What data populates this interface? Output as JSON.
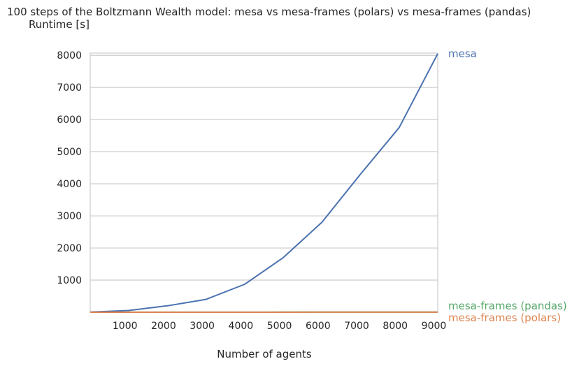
{
  "chart_data": {
    "type": "line",
    "title": "100 steps of the Boltzmann Wealth model: mesa vs mesa-frames (polars) vs mesa-frames (pandas)",
    "subtitle": "Runtime [s]",
    "xlabel": "Number of agents",
    "ylabel": "",
    "xlim": [
      100,
      9100
    ],
    "ylim": [
      0,
      8070
    ],
    "x_ticks": [
      1000,
      2000,
      3000,
      4000,
      5000,
      6000,
      7000,
      8000,
      9000
    ],
    "y_ticks": [
      1000,
      2000,
      3000,
      4000,
      5000,
      6000,
      7000,
      8000
    ],
    "grid": "horizontal",
    "legend": "direct labels at right edge",
    "series": [
      {
        "name": "mesa",
        "color": "#4c72b0",
        "x": [
          100,
          1100,
          2100,
          3100,
          4100,
          5100,
          6100,
          7100,
          8100,
          9100
        ],
        "values": [
          5,
          55,
          200,
          400,
          870,
          1700,
          2800,
          4300,
          5750,
          8050
        ]
      },
      {
        "name": "mesa-frames (pandas)",
        "color": "#55a868",
        "x": [
          100,
          1100,
          2100,
          3100,
          4100,
          5100,
          6100,
          7100,
          8100,
          9100
        ],
        "values": [
          1,
          2,
          2,
          3,
          3,
          4,
          4,
          5,
          5,
          6
        ]
      },
      {
        "name": "mesa-frames (polars)",
        "color": "#dd8452",
        "x": [
          100,
          1100,
          2100,
          3100,
          4100,
          5100,
          6100,
          7100,
          8100,
          9100
        ],
        "values": [
          0.5,
          0.6,
          0.7,
          0.8,
          0.9,
          1.0,
          1.1,
          1.2,
          1.3,
          1.4
        ]
      }
    ]
  }
}
